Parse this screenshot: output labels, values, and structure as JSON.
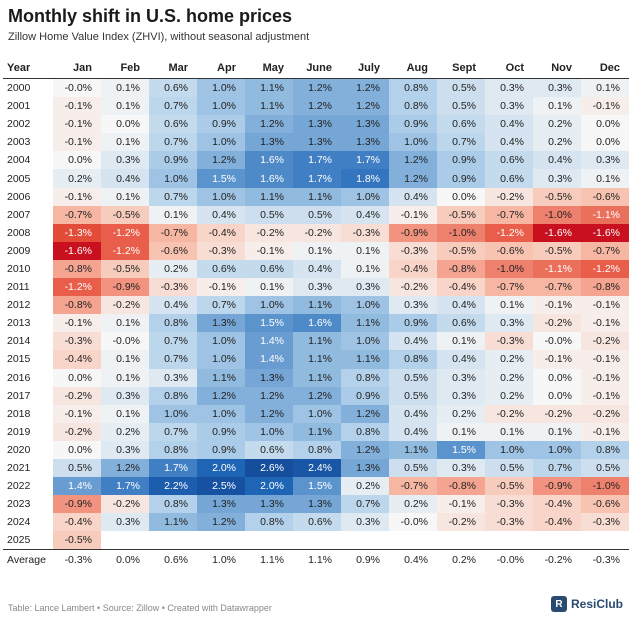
{
  "header": {
    "title": "Monthly shift in U.S. home prices",
    "subtitle": "Zillow Home Value Index (ZHVI), without seasonal adjustment"
  },
  "footer": {
    "source": "Table: Lance Lambert • Source: Zillow • Created with Datawrapper",
    "brand_mark": "R",
    "brand_name": "ResiClub"
  },
  "colors": {
    "positive": "#1f67b8",
    "negative": "#c8101e",
    "neutral": "#f7f7f7"
  },
  "chart_data": {
    "type": "heatmap",
    "title": "Monthly shift in U.S. home prices",
    "subtitle": "Zillow Home Value Index (ZHVI), without seasonal adjustment",
    "row_header": "Year",
    "columns": [
      "Jan",
      "Feb",
      "Mar",
      "Apr",
      "May",
      "June",
      "July",
      "Aug",
      "Sept",
      "Oct",
      "Nov",
      "Dec"
    ],
    "unit": "%",
    "rows": [
      {
        "label": "2000",
        "values": [
          "-0.0",
          "0.1",
          "0.6",
          "1.0",
          "1.1",
          "1.2",
          "1.2",
          "0.8",
          "0.5",
          "0.3",
          "0.3",
          "0.1"
        ]
      },
      {
        "label": "2001",
        "values": [
          "-0.1",
          "0.1",
          "0.7",
          "1.0",
          "1.1",
          "1.2",
          "1.2",
          "0.8",
          "0.5",
          "0.3",
          "0.1",
          "-0.1"
        ]
      },
      {
        "label": "2002",
        "values": [
          "-0.1",
          "0.0",
          "0.6",
          "0.9",
          "1.2",
          "1.3",
          "1.3",
          "0.9",
          "0.6",
          "0.4",
          "0.2",
          "0.0"
        ]
      },
      {
        "label": "2003",
        "values": [
          "-0.1",
          "0.1",
          "0.7",
          "1.0",
          "1.3",
          "1.3",
          "1.3",
          "1.0",
          "0.7",
          "0.4",
          "0.2",
          "0.0"
        ]
      },
      {
        "label": "2004",
        "values": [
          "0.0",
          "0.3",
          "0.9",
          "1.2",
          "1.6",
          "1.7",
          "1.7",
          "1.2",
          "0.9",
          "0.6",
          "0.4",
          "0.3"
        ]
      },
      {
        "label": "2005",
        "values": [
          "0.2",
          "0.4",
          "1.0",
          "1.5",
          "1.6",
          "1.7",
          "1.8",
          "1.2",
          "0.9",
          "0.6",
          "0.3",
          "0.1"
        ]
      },
      {
        "label": "2006",
        "values": [
          "-0.1",
          "0.1",
          "0.7",
          "1.0",
          "1.1",
          "1.1",
          "1.0",
          "0.4",
          "0.0",
          "-0.2",
          "-0.5",
          "-0.6"
        ]
      },
      {
        "label": "2007",
        "values": [
          "-0.7",
          "-0.5",
          "0.1",
          "0.4",
          "0.5",
          "0.5",
          "0.4",
          "-0.1",
          "-0.5",
          "-0.7",
          "-1.0",
          "-1.1"
        ]
      },
      {
        "label": "2008",
        "values": [
          "-1.3",
          "-1.2",
          "-0.7",
          "-0.4",
          "-0.2",
          "-0.2",
          "-0.3",
          "-0.9",
          "-1.0",
          "-1.2",
          "-1.6",
          "-1.6"
        ]
      },
      {
        "label": "2009",
        "values": [
          "-1.6",
          "-1.2",
          "-0.6",
          "-0.3",
          "-0.1",
          "0.1",
          "0.1",
          "-0.3",
          "-0.5",
          "-0.6",
          "-0.5",
          "-0.7"
        ]
      },
      {
        "label": "2010",
        "values": [
          "-0.8",
          "-0.5",
          "0.2",
          "0.6",
          "0.6",
          "0.4",
          "0.1",
          "-0.4",
          "-0.8",
          "-1.0",
          "-1.1",
          "-1.2"
        ]
      },
      {
        "label": "2011",
        "values": [
          "-1.2",
          "-0.9",
          "-0.3",
          "-0.1",
          "0.1",
          "0.3",
          "0.3",
          "-0.2",
          "-0.4",
          "-0.7",
          "-0.7",
          "-0.8"
        ]
      },
      {
        "label": "2012",
        "values": [
          "-0.8",
          "-0.2",
          "0.4",
          "0.7",
          "1.0",
          "1.1",
          "1.0",
          "0.3",
          "0.4",
          "0.1",
          "-0.1",
          "-0.1"
        ]
      },
      {
        "label": "2013",
        "values": [
          "-0.1",
          "0.1",
          "0.8",
          "1.3",
          "1.5",
          "1.6",
          "1.1",
          "0.9",
          "0.6",
          "0.3",
          "-0.2",
          "-0.1"
        ]
      },
      {
        "label": "2014",
        "values": [
          "-0.3",
          "-0.0",
          "0.7",
          "1.0",
          "1.4",
          "1.1",
          "1.0",
          "0.4",
          "0.1",
          "-0.3",
          "-0.0",
          "-0.2"
        ]
      },
      {
        "label": "2015",
        "values": [
          "-0.4",
          "0.1",
          "0.7",
          "1.0",
          "1.4",
          "1.1",
          "1.1",
          "0.8",
          "0.4",
          "0.2",
          "-0.1",
          "-0.1"
        ]
      },
      {
        "label": "2016",
        "values": [
          "0.0",
          "0.1",
          "0.3",
          "1.1",
          "1.3",
          "1.1",
          "0.8",
          "0.5",
          "0.3",
          "0.2",
          "0.0",
          "-0.1"
        ]
      },
      {
        "label": "2017",
        "values": [
          "-0.2",
          "0.3",
          "0.8",
          "1.2",
          "1.2",
          "1.2",
          "0.9",
          "0.5",
          "0.3",
          "0.2",
          "0.0",
          "-0.1"
        ]
      },
      {
        "label": "2018",
        "values": [
          "-0.1",
          "0.1",
          "1.0",
          "1.0",
          "1.2",
          "1.0",
          "1.2",
          "0.4",
          "0.2",
          "-0.2",
          "-0.2",
          "-0.2"
        ]
      },
      {
        "label": "2019",
        "values": [
          "-0.2",
          "0.2",
          "0.7",
          "0.9",
          "1.0",
          "1.1",
          "0.8",
          "0.4",
          "0.1",
          "0.1",
          "0.1",
          "-0.1"
        ]
      },
      {
        "label": "2020",
        "values": [
          "0.0",
          "0.3",
          "0.8",
          "0.9",
          "0.6",
          "0.8",
          "1.2",
          "1.1",
          "1.5",
          "1.0",
          "1.0",
          "0.8"
        ]
      },
      {
        "label": "2021",
        "values": [
          "0.5",
          "1.2",
          "1.7",
          "2.0",
          "2.6",
          "2.4",
          "1.3",
          "0.5",
          "0.3",
          "0.5",
          "0.7",
          "0.5"
        ]
      },
      {
        "label": "2022",
        "values": [
          "1.4",
          "1.7",
          "2.2",
          "2.5",
          "2.0",
          "1.5",
          "0.2",
          "-0.7",
          "-0.8",
          "-0.5",
          "-0.9",
          "-1.0"
        ]
      },
      {
        "label": "2023",
        "values": [
          "-0.9",
          "-0.2",
          "0.8",
          "1.3",
          "1.3",
          "1.3",
          "0.7",
          "0.2",
          "-0.1",
          "-0.3",
          "-0.4",
          "-0.6"
        ]
      },
      {
        "label": "2024",
        "values": [
          "-0.4",
          "0.3",
          "1.1",
          "1.2",
          "0.8",
          "0.6",
          "0.3",
          "-0.0",
          "-0.2",
          "-0.3",
          "-0.4",
          "-0.3"
        ]
      },
      {
        "label": "2025",
        "values": [
          "-0.5",
          "",
          "",
          "",
          "",
          "",
          "",
          "",
          "",
          "",
          "",
          ""
        ]
      }
    ],
    "average": {
      "label": "Average",
      "values": [
        "-0.3",
        "0.0",
        "0.6",
        "1.0",
        "1.1",
        "1.1",
        "0.9",
        "0.4",
        "0.2",
        "-0.0",
        "-0.2",
        "-0.3"
      ]
    },
    "color_range": [
      -1.6,
      2.6
    ]
  }
}
